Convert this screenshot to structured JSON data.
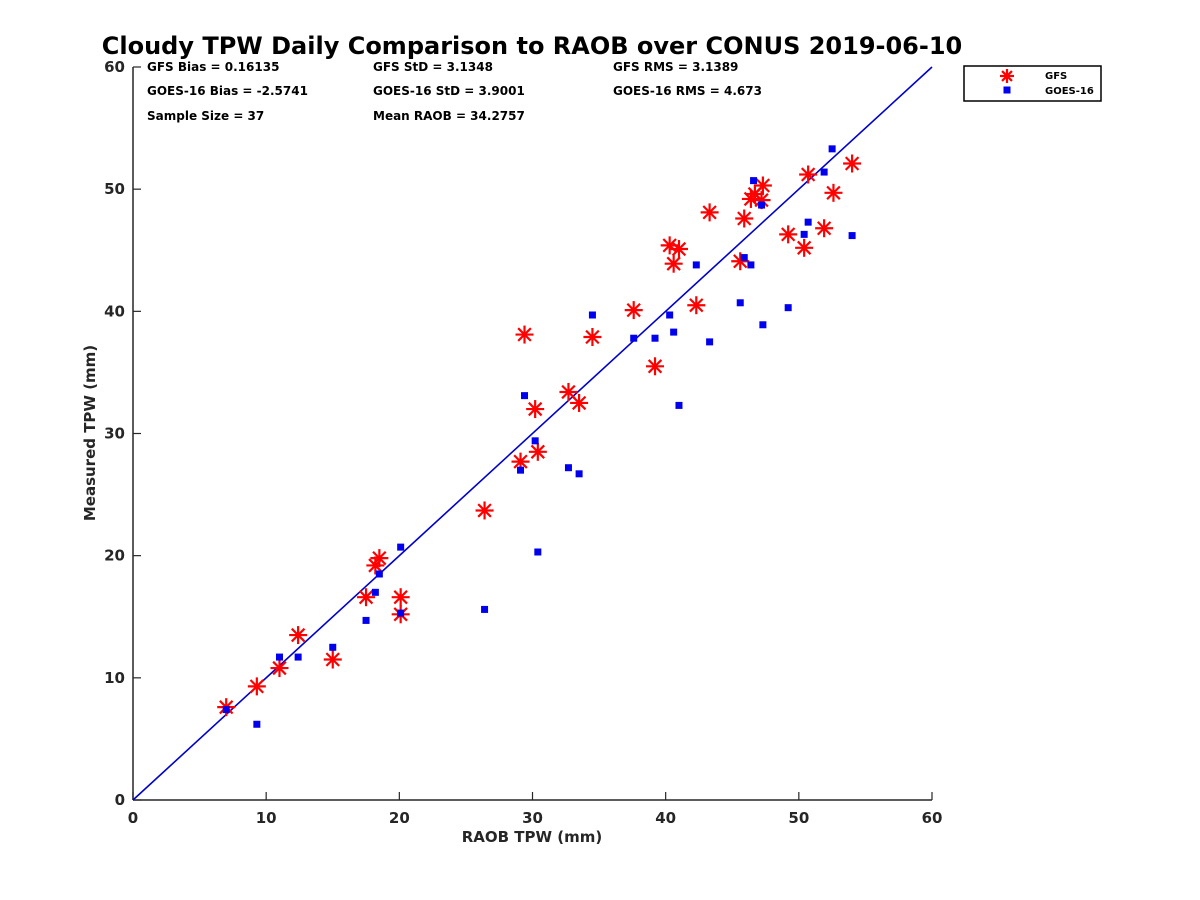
{
  "chart_data": {
    "type": "scatter",
    "title": "Cloudy TPW Daily Comparison to RAOB over CONUS 2019-06-10",
    "xlabel": "RAOB TPW (mm)",
    "ylabel": "Measured TPW (mm)",
    "xlim": [
      0,
      60
    ],
    "ylim": [
      0,
      60
    ],
    "xticks": [
      "0",
      "10",
      "20",
      "30",
      "40",
      "50",
      "60"
    ],
    "yticks": [
      "0",
      "10",
      "20",
      "30",
      "40",
      "50",
      "60"
    ],
    "grid": false,
    "legend_position": "outside top-right",
    "reference_line": {
      "x": [
        0,
        60
      ],
      "y": [
        0,
        60
      ],
      "color": "#0000cc"
    },
    "stats": [
      "GFS Bias = 0.16135",
      "GFS StD = 3.1348",
      "GFS RMS = 3.1389",
      "GOES-16 Bias = -2.5741",
      "GOES-16 StD = 3.9001",
      "GOES-16 RMS = 4.673",
      "Sample Size = 37",
      "Mean RAOB = 34.2757"
    ],
    "series": [
      {
        "name": "GFS",
        "marker": "asterisk",
        "color": "#ff0000",
        "points": [
          [
            7.0,
            7.6
          ],
          [
            9.3,
            9.3
          ],
          [
            11.0,
            10.8
          ],
          [
            12.4,
            13.5
          ],
          [
            15.0,
            11.5
          ],
          [
            17.5,
            16.6
          ],
          [
            18.2,
            19.2
          ],
          [
            18.5,
            19.8
          ],
          [
            20.1,
            16.6
          ],
          [
            20.1,
            15.2
          ],
          [
            26.4,
            23.7
          ],
          [
            29.1,
            27.7
          ],
          [
            29.4,
            38.1
          ],
          [
            30.2,
            32.0
          ],
          [
            30.4,
            28.5
          ],
          [
            32.7,
            33.4
          ],
          [
            33.5,
            32.5
          ],
          [
            34.5,
            37.9
          ],
          [
            37.6,
            40.1
          ],
          [
            39.2,
            35.5
          ],
          [
            40.3,
            45.4
          ],
          [
            40.6,
            43.9
          ],
          [
            41.0,
            45.1
          ],
          [
            42.3,
            40.5
          ],
          [
            43.3,
            48.1
          ],
          [
            45.6,
            44.1
          ],
          [
            45.9,
            47.6
          ],
          [
            46.4,
            49.2
          ],
          [
            46.7,
            49.6
          ],
          [
            47.2,
            49.1
          ],
          [
            47.3,
            50.3
          ],
          [
            49.2,
            46.3
          ],
          [
            50.4,
            45.2
          ],
          [
            50.7,
            51.2
          ],
          [
            51.9,
            46.8
          ],
          [
            52.6,
            49.7
          ],
          [
            54.0,
            52.1
          ]
        ]
      },
      {
        "name": "GOES-16",
        "marker": "square",
        "color": "#0000ee",
        "points": [
          [
            7.0,
            7.4
          ],
          [
            9.3,
            6.2
          ],
          [
            11.0,
            11.7
          ],
          [
            12.4,
            11.7
          ],
          [
            15.0,
            12.5
          ],
          [
            17.5,
            14.7
          ],
          [
            18.2,
            17.0
          ],
          [
            18.5,
            18.5
          ],
          [
            20.1,
            20.7
          ],
          [
            20.1,
            15.3
          ],
          [
            26.4,
            15.6
          ],
          [
            29.1,
            27.0
          ],
          [
            29.4,
            33.1
          ],
          [
            30.2,
            29.4
          ],
          [
            30.4,
            20.3
          ],
          [
            32.7,
            27.2
          ],
          [
            33.5,
            26.7
          ],
          [
            34.5,
            39.7
          ],
          [
            37.6,
            37.8
          ],
          [
            39.2,
            37.8
          ],
          [
            40.3,
            39.7
          ],
          [
            40.6,
            38.3
          ],
          [
            41.0,
            32.3
          ],
          [
            42.3,
            43.8
          ],
          [
            43.3,
            37.5
          ],
          [
            45.6,
            40.7
          ],
          [
            45.9,
            44.4
          ],
          [
            46.4,
            43.8
          ],
          [
            46.6,
            50.7
          ],
          [
            47.2,
            48.7
          ],
          [
            47.3,
            38.9
          ],
          [
            49.2,
            40.3
          ],
          [
            50.4,
            46.3
          ],
          [
            50.7,
            47.3
          ],
          [
            51.9,
            51.4
          ],
          [
            52.5,
            53.3
          ],
          [
            54.0,
            46.2
          ]
        ]
      }
    ]
  }
}
